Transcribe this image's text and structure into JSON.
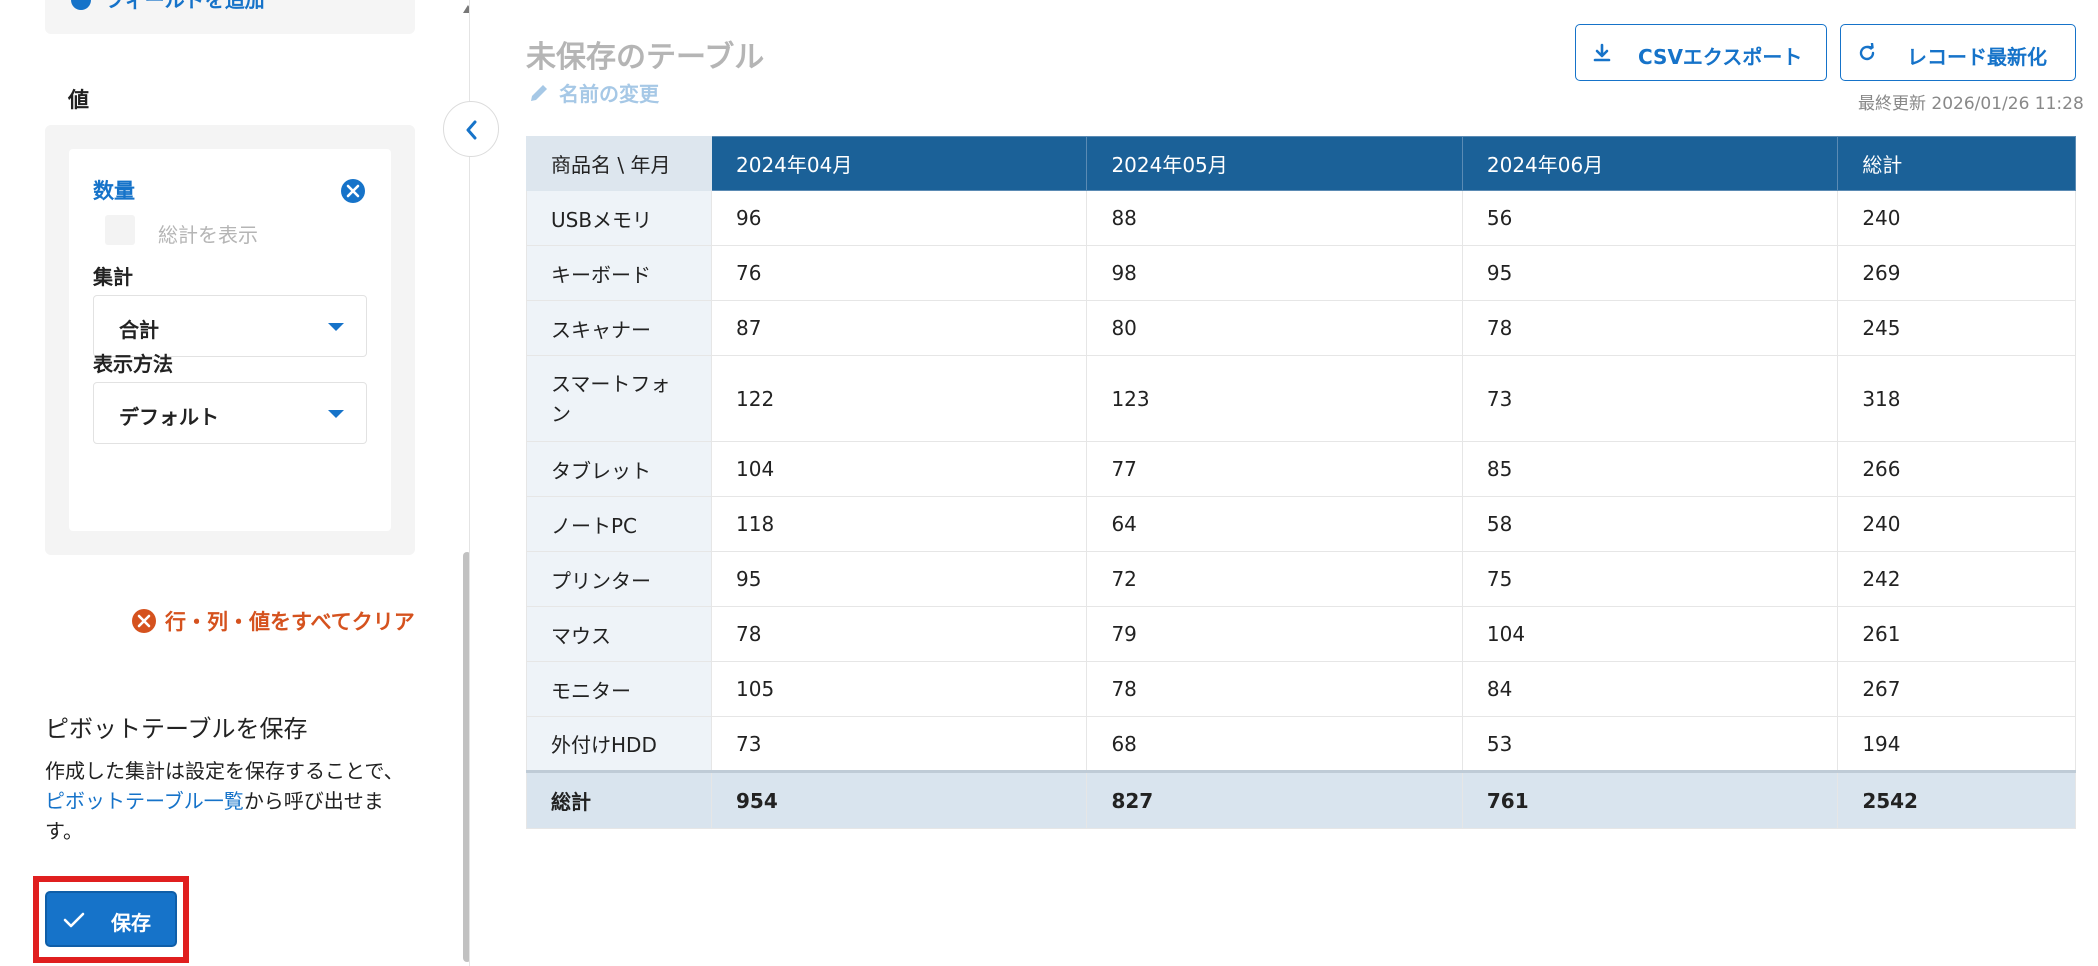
{
  "sidebar": {
    "add_field_label": "フィールドを追加",
    "values_title": "値",
    "value_card": {
      "field_name": "数量",
      "show_total_label": "総計を表示",
      "aggregation_label": "集計",
      "aggregation_value": "合計",
      "display_label": "表示方法",
      "display_value": "デフォルト"
    },
    "clear_all_label": "行・列・値をすべてクリア",
    "save_section": {
      "title": "ピボットテーブルを保存",
      "desc_before": "作成した集計は設定を保存することで、",
      "desc_link": "ピボットテーブル一覧",
      "desc_after": "から呼び出せます。",
      "save_button": "保存"
    }
  },
  "header": {
    "table_title": "未保存のテーブル",
    "rename_label": "名前の変更",
    "csv_export_label": "CSVエクスポート",
    "refresh_label": "レコード最新化",
    "last_updated": "最終更新 2026/01/26 11:28"
  },
  "table": {
    "corner_header": "商品名 \\ 年月",
    "columns": [
      "2024年04月",
      "2024年05月",
      "2024年06月",
      "総計"
    ],
    "rows": [
      {
        "name": "USBメモリ",
        "values": [
          "96",
          "88",
          "56",
          "240"
        ]
      },
      {
        "name": "キーボード",
        "values": [
          "76",
          "98",
          "95",
          "269"
        ]
      },
      {
        "name": "スキャナー",
        "values": [
          "87",
          "80",
          "78",
          "245"
        ]
      },
      {
        "name": "スマートフォン",
        "values": [
          "122",
          "123",
          "73",
          "318"
        ]
      },
      {
        "name": "タブレット",
        "values": [
          "104",
          "77",
          "85",
          "266"
        ]
      },
      {
        "name": "ノートPC",
        "values": [
          "118",
          "64",
          "58",
          "240"
        ]
      },
      {
        "name": "プリンター",
        "values": [
          "95",
          "72",
          "75",
          "242"
        ]
      },
      {
        "name": "マウス",
        "values": [
          "78",
          "79",
          "104",
          "261"
        ]
      },
      {
        "name": "モニター",
        "values": [
          "105",
          "78",
          "84",
          "267"
        ]
      },
      {
        "name": "外付けHDD",
        "values": [
          "73",
          "68",
          "53",
          "194"
        ]
      }
    ],
    "total_row": {
      "name": "総計",
      "values": [
        "954",
        "827",
        "761",
        "2542"
      ]
    }
  },
  "colors": {
    "accent": "#1673c9",
    "header_bg": "#1b6198",
    "danger": "#d5521e",
    "highlight_outline": "#e01f1f"
  }
}
